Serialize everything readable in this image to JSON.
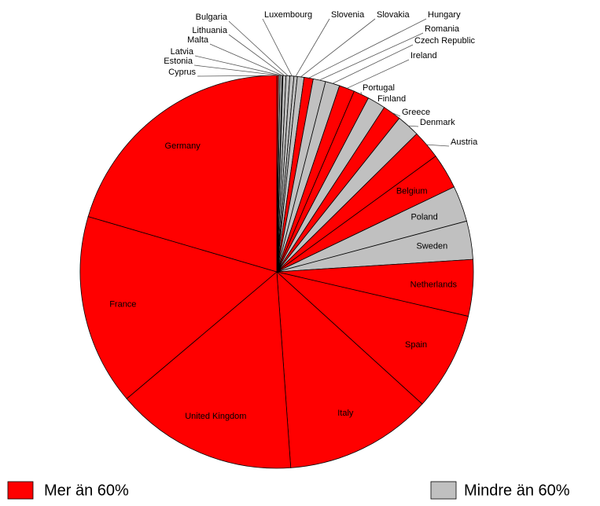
{
  "chart_data": {
    "type": "pie",
    "categories": [
      "Cyprus",
      "Estonia",
      "Latvia",
      "Malta",
      "Lithuania",
      "Bulgaria",
      "Luxembourg",
      "Slovenia",
      "Slovakia",
      "Hungary",
      "Romania",
      "Czech Republic",
      "Ireland",
      "Portugal",
      "Finland",
      "Greece",
      "Denmark",
      "Austria",
      "Belgium",
      "Poland",
      "Sweden",
      "Netherlands",
      "Spain",
      "Italy",
      "United Kingdom",
      "France",
      "Germany"
    ],
    "values": [
      18,
      17,
      22,
      7,
      33,
      40,
      43,
      36,
      71,
      97,
      132,
      152,
      164,
      165,
      193,
      194,
      245,
      307,
      376,
      381,
      408,
      600,
      1049,
      1567,
      1933,
      2032,
      2644
    ],
    "colors": [
      "#ff0000",
      "#c0c0c0",
      "#c0c0c0",
      "#ff0000",
      "#c0c0c0",
      "#c0c0c0",
      "#c0c0c0",
      "#c0c0c0",
      "#c0c0c0",
      "#ff0000",
      "#c0c0c0",
      "#c0c0c0",
      "#ff0000",
      "#ff0000",
      "#c0c0c0",
      "#ff0000",
      "#c0c0c0",
      "#ff0000",
      "#ff0000",
      "#c0c0c0",
      "#c0c0c0",
      "#ff0000",
      "#ff0000",
      "#ff0000",
      "#ff0000",
      "#ff0000",
      "#ff0000"
    ],
    "legend": [
      {
        "label": "Mer än 60%",
        "color": "#ff0000"
      },
      {
        "label": "Mindre än 60%",
        "color": "#c0c0c0"
      }
    ]
  }
}
